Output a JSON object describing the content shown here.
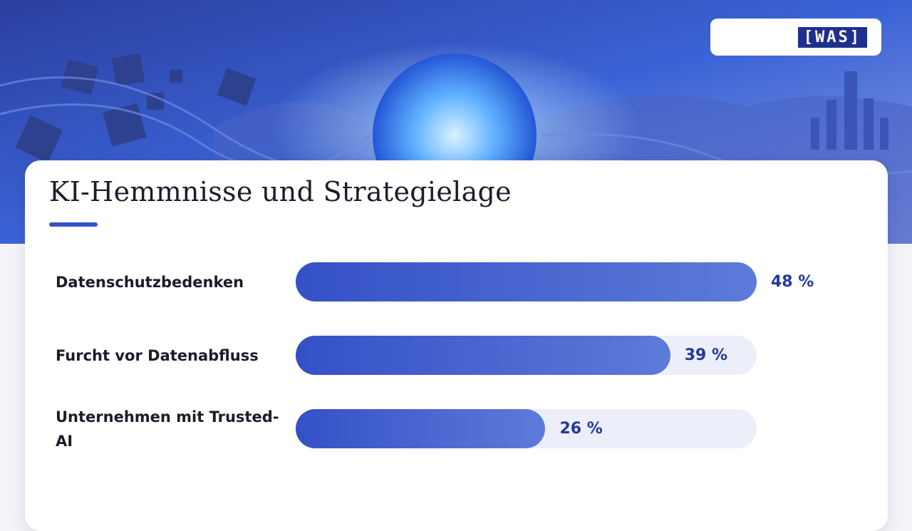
{
  "logo": "[WAS]",
  "chart_data": {
    "type": "bar",
    "orientation": "horizontal",
    "title": "KI-Hemmnisse und Strategielage",
    "categories": [
      "Datenschutzbedenken",
      "Furcht vor Datenabfluss",
      "Unternehmen mit Trusted-AI"
    ],
    "values": [
      48,
      39,
      26
    ],
    "value_labels": [
      "48 %",
      "39 %",
      "26 %"
    ],
    "xlim": [
      0,
      48
    ],
    "color": "#3d5ccc"
  }
}
